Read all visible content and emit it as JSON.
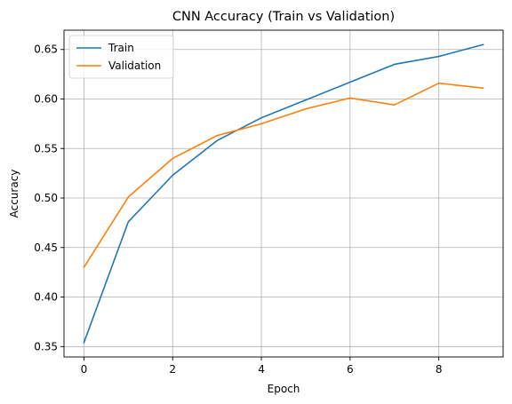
{
  "chart_data": {
    "type": "line",
    "title": "CNN Accuracy (Train vs Validation)",
    "xlabel": "Epoch",
    "ylabel": "Accuracy",
    "x": [
      0,
      1,
      2,
      3,
      4,
      5,
      6,
      7,
      8,
      9
    ],
    "xlim": [
      -0.45,
      9.45
    ],
    "ylim": [
      0.3395,
      0.6695
    ],
    "xticks": [
      0,
      2,
      4,
      6,
      8
    ],
    "yticks": [
      0.35,
      0.4,
      0.45,
      0.5,
      0.55,
      0.6,
      0.65
    ],
    "xtick_labels": [
      "0",
      "2",
      "4",
      "6",
      "8"
    ],
    "ytick_labels": [
      "0.35",
      "0.40",
      "0.45",
      "0.50",
      "0.55",
      "0.60",
      "0.65"
    ],
    "grid": true,
    "legend_position": "top-left",
    "series": [
      {
        "name": "Train",
        "color": "#1f77b4",
        "values": [
          0.354,
          0.476,
          0.523,
          0.558,
          0.581,
          0.599,
          0.617,
          0.635,
          0.643,
          0.655
        ]
      },
      {
        "name": "Validation",
        "color": "#ff7f0e",
        "values": [
          0.43,
          0.501,
          0.54,
          0.563,
          0.575,
          0.59,
          0.601,
          0.594,
          0.616,
          0.611
        ]
      }
    ]
  }
}
